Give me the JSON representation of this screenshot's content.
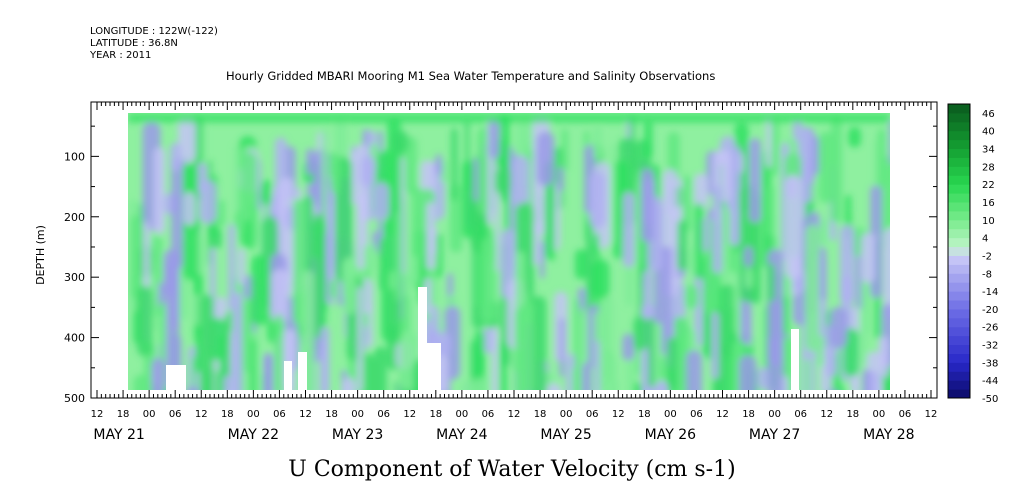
{
  "header": {
    "longitude": "LONGITUDE : 122W(-122)",
    "latitude": "LATITUDE : 36.8N",
    "year": "YEAR : 2011",
    "plot_title": "Hourly Gridded MBARI Mooring M1 Sea Water Temperature and Salinity Observations"
  },
  "chart_data": {
    "type": "heatmap",
    "title": "U Component of Water Velocity (cm s-1)",
    "ylabel": "DEPTH (m)",
    "xlabel": "",
    "y_axis": {
      "range": [
        500,
        10
      ],
      "reversed": true,
      "ticks": [
        100,
        200,
        300,
        400,
        500
      ]
    },
    "x_axis": {
      "hour_ticks": [
        "12",
        "18",
        "00",
        "06",
        "12",
        "18",
        "00",
        "06",
        "12",
        "18",
        "00",
        "06",
        "12",
        "18",
        "00",
        "06",
        "12",
        "18",
        "00",
        "06",
        "12",
        "18",
        "00",
        "06",
        "12",
        "18",
        "00",
        "06",
        "12",
        "18",
        "00",
        "06",
        "12"
      ],
      "day_labels": [
        "MAY 21",
        "MAY 22",
        "MAY 23",
        "MAY 24",
        "MAY 25",
        "MAY 26",
        "MAY 27",
        "MAY 28"
      ]
    },
    "colorbar": {
      "labels": [
        "46",
        "40",
        "34",
        "28",
        "22",
        "16",
        "10",
        "4",
        "-2",
        "-8",
        "-14",
        "-20",
        "-26",
        "-32",
        "-38",
        "-44",
        "-50"
      ],
      "range": [
        -50,
        49
      ],
      "step": 3
    },
    "colors": {
      "strong_positive": "#0a6b1e",
      "positive": "#1fd84a",
      "weak_positive": "#8ff0a0",
      "weak_negative": "#b8b8f4",
      "negative": "#9a9ae8",
      "strong_negative": "#0a0a66"
    },
    "grid": false
  }
}
